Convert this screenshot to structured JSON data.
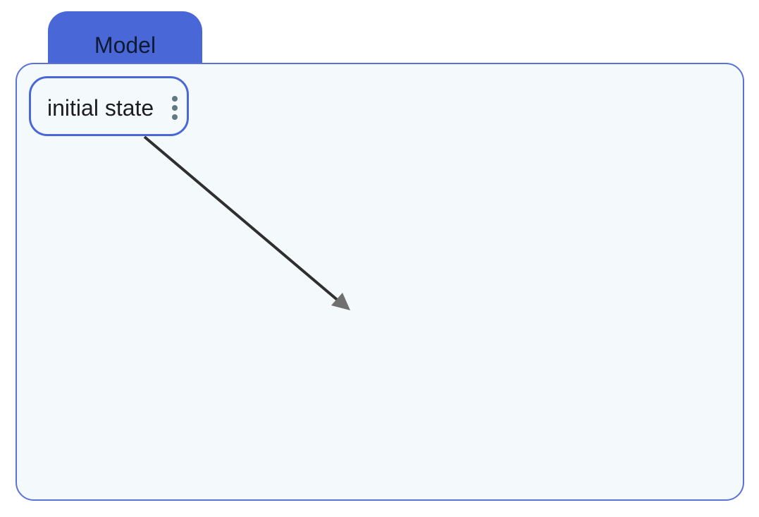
{
  "diagram": {
    "container": {
      "label": "Model"
    },
    "nodes": [
      {
        "id": "initial-state",
        "label": "initial state",
        "menu_icon": "vertical-dots-icon"
      }
    ],
    "edges": [
      {
        "from": "initial-state",
        "to": "",
        "arrowhead": "filled-triangle"
      }
    ],
    "colors": {
      "tab_fill": "#4a67d8",
      "frame_border": "#5b73d6",
      "frame_fill": "#f4f9fc",
      "node_border": "#4a67d8",
      "edge_stroke": "#2f2f2f",
      "arrowhead_fill": "#707070",
      "menu_icon": "#5f7882"
    }
  }
}
